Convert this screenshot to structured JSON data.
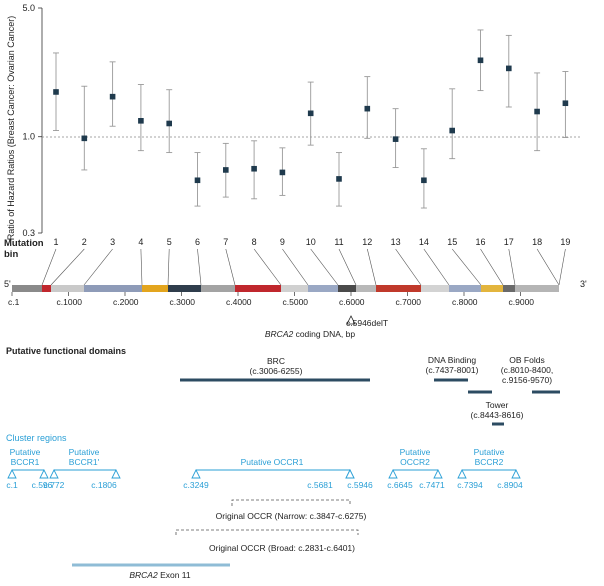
{
  "chart_data": {
    "type": "scatter",
    "ylabel": "Ratio of Hazard Ratios (Breast Cancer: Ovarian Cancer)",
    "y_scale": "log",
    "ylim": [
      0.3,
      5.0
    ],
    "y_ticks": [
      "0.3",
      "1.0",
      "5.0"
    ],
    "reference_line": 1.0,
    "x_title": "Mutation bin",
    "bins": [
      "1",
      "2",
      "3",
      "4",
      "5",
      "6",
      "7",
      "8",
      "9",
      "10",
      "11",
      "12",
      "13",
      "14",
      "15",
      "16",
      "17",
      "18",
      "19"
    ],
    "estimates": [
      1.75,
      0.98,
      1.65,
      1.22,
      1.18,
      0.58,
      0.66,
      0.67,
      0.64,
      1.34,
      0.59,
      1.42,
      0.97,
      0.58,
      1.08,
      2.6,
      2.35,
      1.37,
      1.52
    ],
    "ci_lower": [
      1.08,
      0.66,
      1.14,
      0.84,
      0.82,
      0.42,
      0.47,
      0.46,
      0.48,
      0.9,
      0.42,
      0.98,
      0.68,
      0.41,
      0.76,
      1.78,
      1.45,
      0.84,
      0.99
    ],
    "ci_upper": [
      2.85,
      1.88,
      2.55,
      1.92,
      1.8,
      0.82,
      0.92,
      0.95,
      0.87,
      1.98,
      0.82,
      2.12,
      1.42,
      0.86,
      1.82,
      3.8,
      3.55,
      2.22,
      2.26
    ]
  },
  "dna_bar": {
    "five_prime": "5'",
    "three_prime": "3'",
    "ticks": [
      "c.1",
      "c.1000",
      "c.2000",
      "c.3000",
      "c.4000",
      "c.5000",
      "c.6000",
      "c.7000",
      "c.8000",
      "c.9000"
    ],
    "mutation_label": "c.5946delT",
    "axis_label_italic": "BRCA2",
    "axis_label_rest": " coding DNA, bp",
    "segments": [
      {
        "color": "#8a8a8a"
      },
      {
        "color": "#c0272d"
      },
      {
        "color": "#c9c9c9"
      },
      {
        "color": "#8e9bb8"
      },
      {
        "color": "#e3a51e"
      },
      {
        "color": "#2f3d4c"
      },
      {
        "color": "#a3a3a3"
      },
      {
        "color": "#c0272d"
      },
      {
        "color": "#d0d0d0"
      },
      {
        "color": "#9aa8c4"
      },
      {
        "color": "#4a4a4a"
      },
      {
        "color": "#b8b8b8"
      },
      {
        "color": "#c0392b"
      },
      {
        "color": "#d3d3d3"
      },
      {
        "color": "#9aa8c4"
      },
      {
        "color": "#e3b53d"
      },
      {
        "color": "#6a6a6a"
      },
      {
        "color": "#b5b5b5"
      }
    ]
  },
  "domains": {
    "title": "Putative functional domains",
    "brc": {
      "name": "BRC",
      "range": "(c.3006-6255)"
    },
    "dna_binding": {
      "name": "DNA Binding",
      "range": "(c.7437-8001)"
    },
    "ob_folds": {
      "name": "OB Folds",
      "range1": "(c.8010-8400,",
      "range2": "c.9156-9570)"
    },
    "tower": {
      "name": "Tower",
      "range": "(c.8443-8616)"
    }
  },
  "clusters": {
    "title": "Cluster regions",
    "bccr1": {
      "l1": "Putative",
      "l2": "BCCR1"
    },
    "bccr1p": {
      "l1": "Putative",
      "l2": "BCCR1'"
    },
    "occr1": {
      "l1": "Putative OCCR1"
    },
    "occr2": {
      "l1": "Putative",
      "l2": "OCCR2"
    },
    "bccr2": {
      "l1": "Putative",
      "l2": "BCCR2"
    },
    "points": [
      "c.1",
      "c.596",
      "c.772",
      "c.1806",
      "c.3249",
      "c.5681",
      "c.5946",
      "c.6645",
      "c.7471",
      "c.7394",
      "c.8904"
    ],
    "narrow": "Original OCCR  (Narrow: c.3847-c.6275)",
    "broad": "Original OCCR  (Broad: c.2831-c.6401)",
    "exon_italic": "BRCA2",
    "exon_rest": " Exon 11"
  },
  "colors": {
    "marker": "#1f3a4d",
    "domain_bar": "#2c4b62",
    "cluster": "#2a9fd6",
    "exon_bar": "#8fbcd6",
    "dash": "#555555"
  }
}
